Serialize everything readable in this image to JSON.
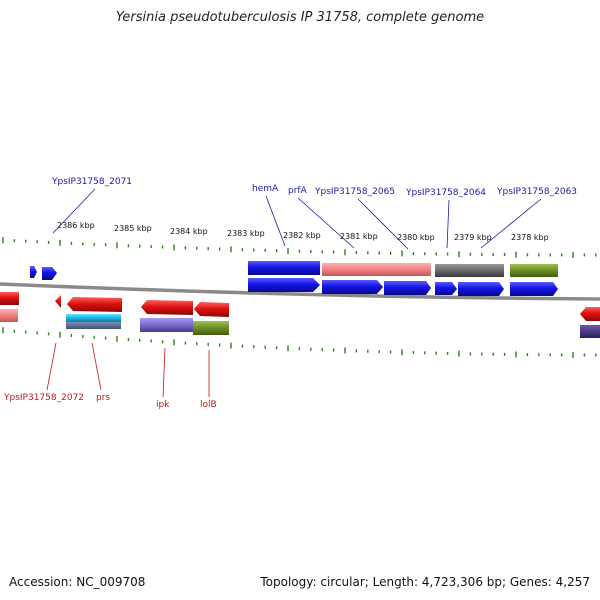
{
  "title": "Yersinia pseudotuberculosis IP 31758, complete genome",
  "footer": {
    "accession": "Accession: NC_009708",
    "summary": "Topology: circular; Length: 4,723,306 bp; Genes: 4,257"
  },
  "scale": {
    "labels": [
      "2386 kbp",
      "2385 kbp",
      "2384 kbp",
      "2383 kbp",
      "2382 kbp",
      "2381 kbp",
      "2380 kbp",
      "2379 kbp",
      "2378 kbp"
    ]
  },
  "gene_labels_top": [
    "YpsIP31758_2071",
    "hemA",
    "prfA",
    "YpsIP31758_2065",
    "YpsIP31758_2064",
    "YpsIP31758_2063"
  ],
  "gene_labels_bottom": [
    "YpsIP31758_2072",
    "prs",
    "ipk",
    "lolB"
  ],
  "colors": {
    "forward": "#1414e6",
    "reverse": "#e01010",
    "pink": "#f08080",
    "gray": "#6a6a6a",
    "olive": "#6b8e23",
    "cyan": "#19b5e6",
    "purple": "#7b68cc",
    "tick": "#2e7d1e",
    "backbone": "#8a8a8a"
  }
}
